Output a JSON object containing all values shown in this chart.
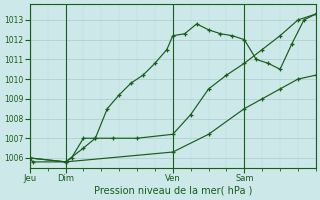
{
  "bg_color": "#cce8e8",
  "grid_color_major": "#aacccc",
  "grid_color_minor": "#bbdddd",
  "line_color": "#1a5c1a",
  "title": "Pression niveau de la mer( hPa )",
  "ylim": [
    1005.5,
    1013.8
  ],
  "yticks": [
    1006,
    1007,
    1008,
    1009,
    1010,
    1011,
    1012,
    1013
  ],
  "xlim": [
    0,
    96
  ],
  "day_positions": [
    0,
    12,
    48,
    72
  ],
  "day_labels": [
    "Jeu",
    "Dim",
    "Ven",
    "Sam"
  ],
  "line1_x": [
    0,
    1,
    12,
    14,
    18,
    22,
    26,
    30,
    34,
    38,
    42,
    46,
    48,
    52,
    56,
    60,
    64,
    68,
    72,
    76,
    80,
    84,
    88,
    92,
    96
  ],
  "line1_y": [
    1006.0,
    1005.8,
    1005.8,
    1006.0,
    1007.0,
    1007.0,
    1008.5,
    1009.2,
    1009.8,
    1010.2,
    1010.8,
    1011.5,
    1012.2,
    1012.3,
    1012.8,
    1012.5,
    1012.3,
    1012.2,
    1012.0,
    1011.0,
    1010.8,
    1010.5,
    1011.8,
    1013.0,
    1013.3
  ],
  "line2_x": [
    0,
    12,
    18,
    22,
    28,
    36,
    48,
    54,
    60,
    66,
    72,
    78,
    84,
    90,
    96
  ],
  "line2_y": [
    1006.0,
    1005.8,
    1006.5,
    1007.0,
    1007.0,
    1007.0,
    1007.2,
    1008.2,
    1009.5,
    1010.2,
    1010.8,
    1011.5,
    1012.2,
    1013.0,
    1013.3
  ],
  "line3_x": [
    0,
    12,
    48,
    60,
    72,
    78,
    84,
    90,
    96
  ],
  "line3_y": [
    1006.0,
    1005.8,
    1006.3,
    1007.2,
    1008.5,
    1009.0,
    1009.5,
    1010.0,
    1010.2
  ]
}
